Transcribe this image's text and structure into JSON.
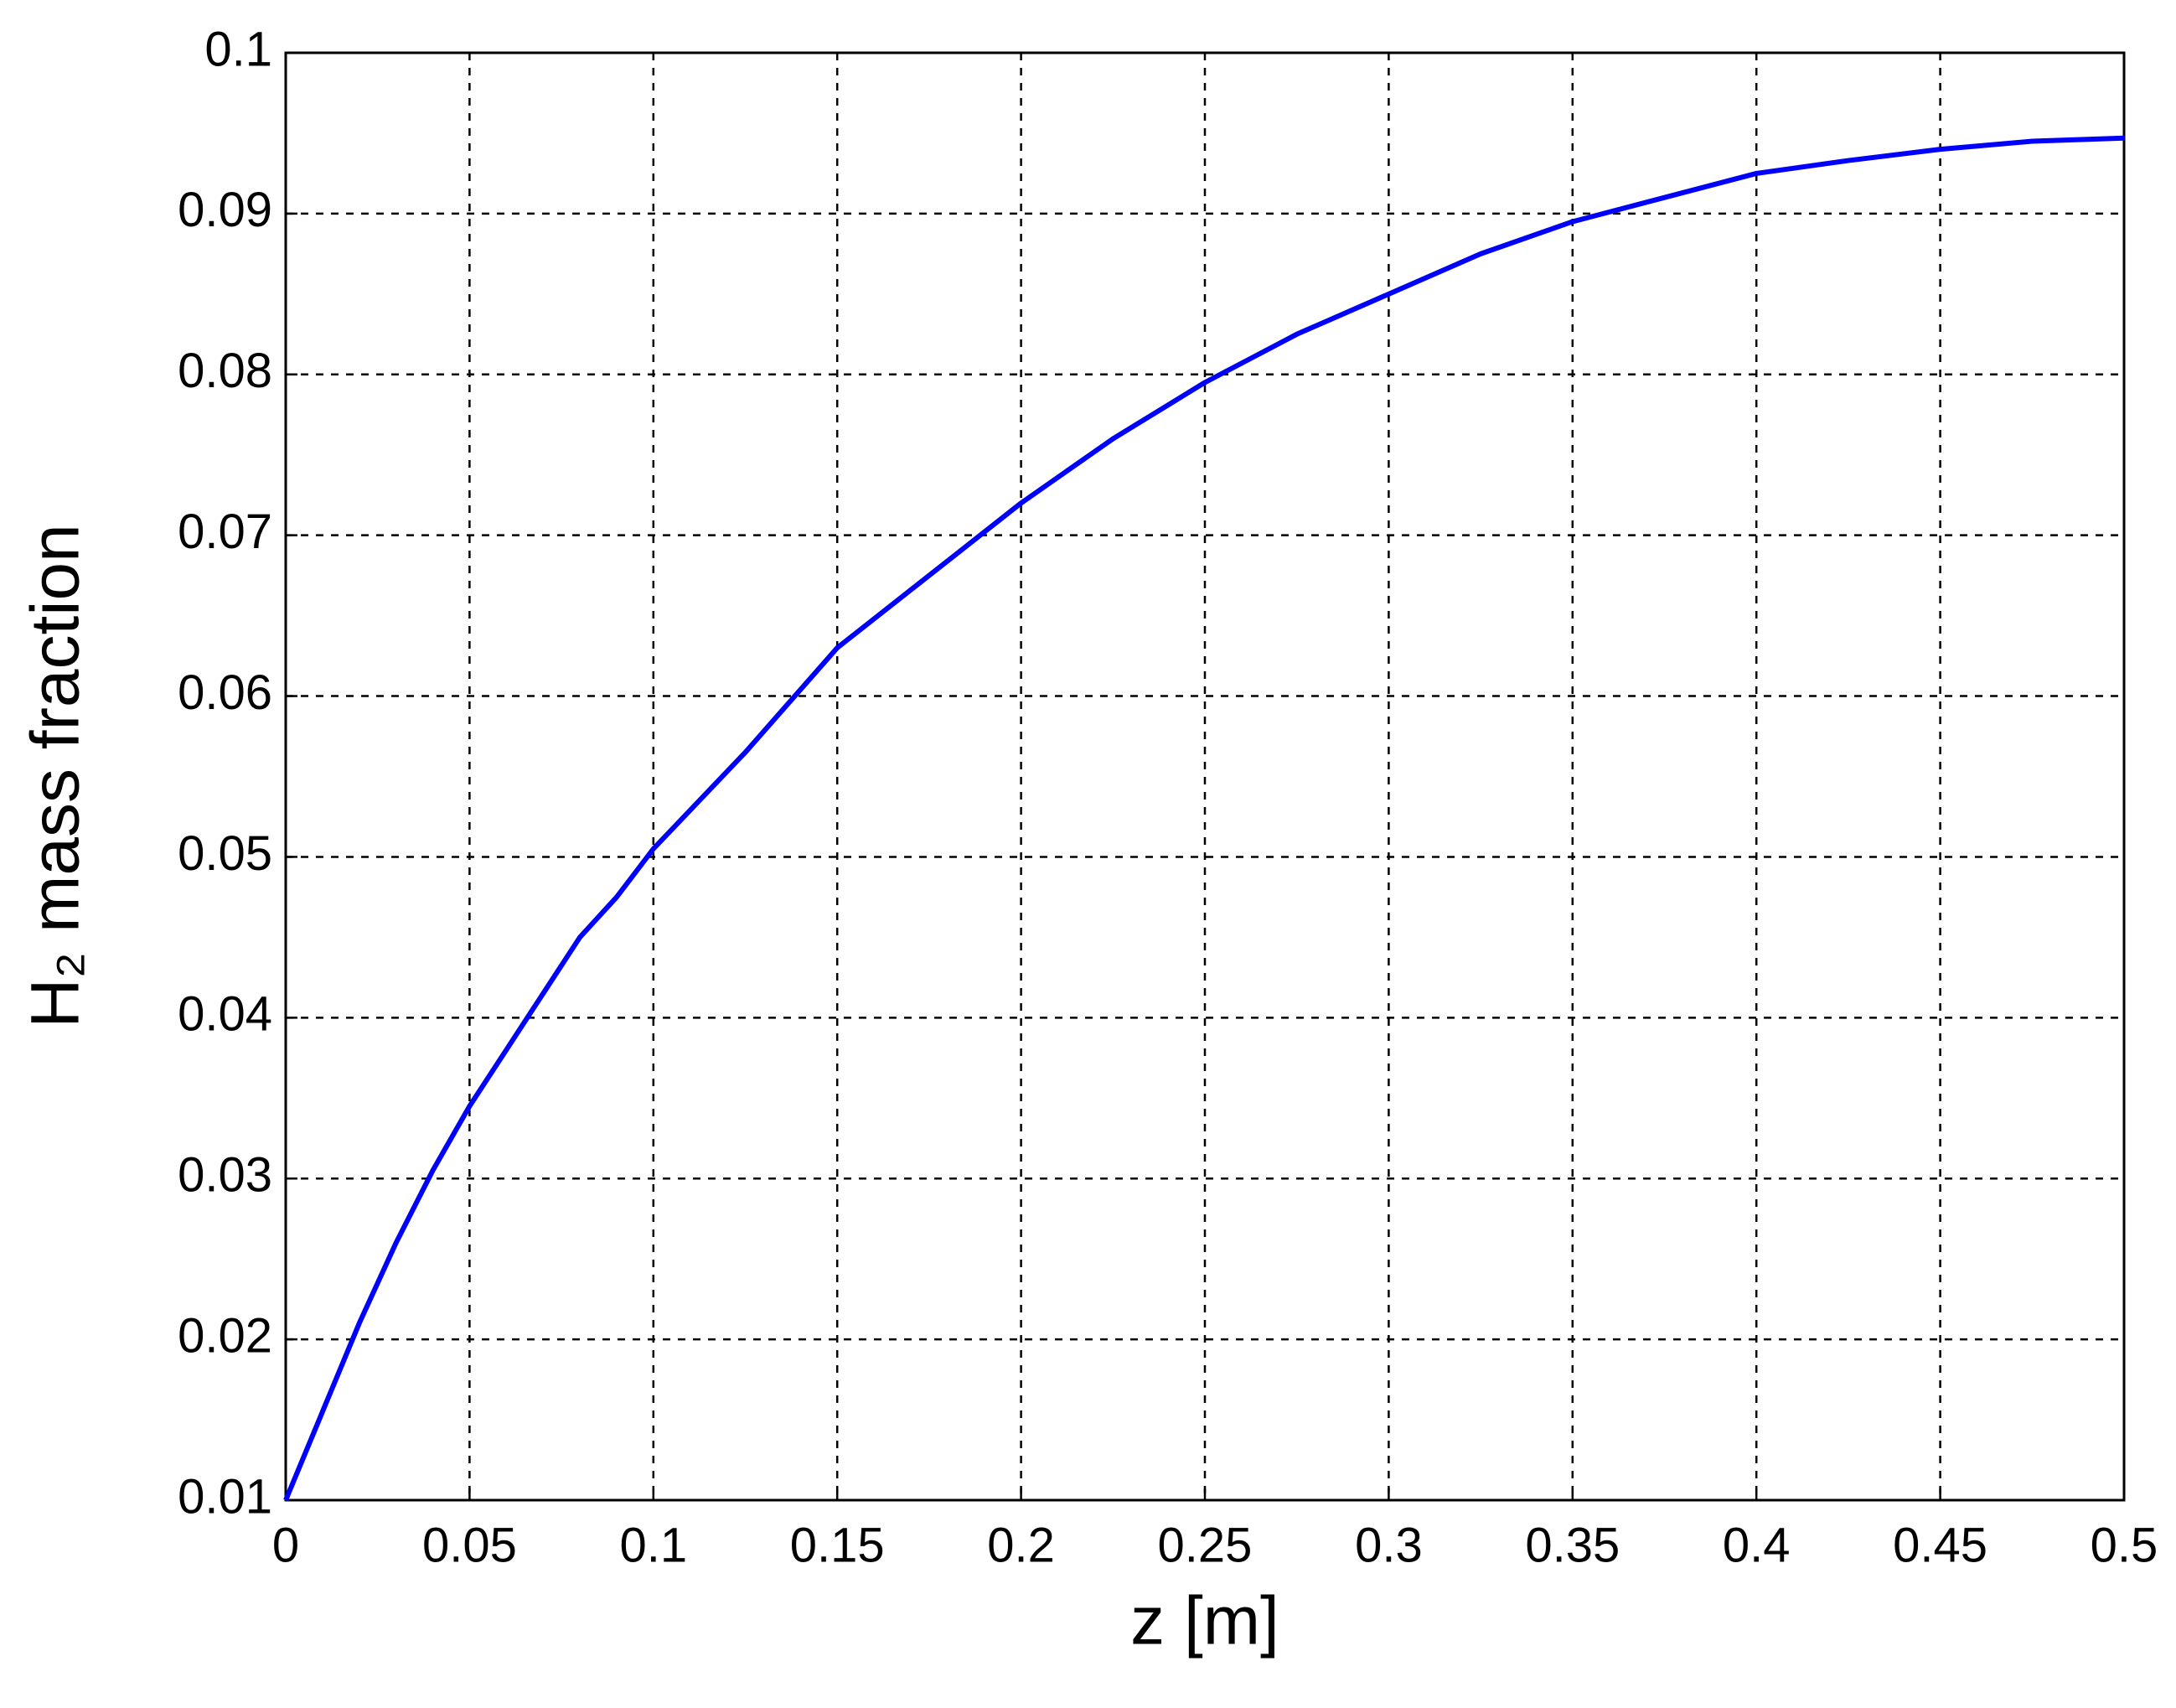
{
  "chart_data": {
    "type": "line",
    "xlabel": "z [m]",
    "ylabel": "H₂ mass fraction",
    "x": [
      0,
      0.01,
      0.02,
      0.03,
      0.04,
      0.05,
      0.06,
      0.07,
      0.08,
      0.09,
      0.1,
      0.125,
      0.15,
      0.175,
      0.2,
      0.225,
      0.25,
      0.275,
      0.3,
      0.325,
      0.35,
      0.375,
      0.4,
      0.425,
      0.45,
      0.475,
      0.5
    ],
    "values": [
      0.01,
      0.0155,
      0.021,
      0.026,
      0.0305,
      0.0345,
      0.038,
      0.0415,
      0.045,
      0.0475,
      0.0505,
      0.0565,
      0.063,
      0.0675,
      0.072,
      0.076,
      0.0795,
      0.0825,
      0.085,
      0.0875,
      0.0895,
      0.091,
      0.0925,
      0.0933,
      0.094,
      0.0945,
      0.0947
    ],
    "color": "#0000ff",
    "xlim": [
      0,
      0.5
    ],
    "xticks": [
      0,
      0.05,
      0.1,
      0.15,
      0.2,
      0.25,
      0.3,
      0.35,
      0.4,
      0.45,
      0.5
    ],
    "ylim": [
      0.01,
      0.1
    ],
    "yticks": [
      0.01,
      0.02,
      0.03,
      0.04,
      0.05,
      0.06,
      0.07,
      0.08,
      0.09,
      0.1
    ],
    "grid": true
  }
}
